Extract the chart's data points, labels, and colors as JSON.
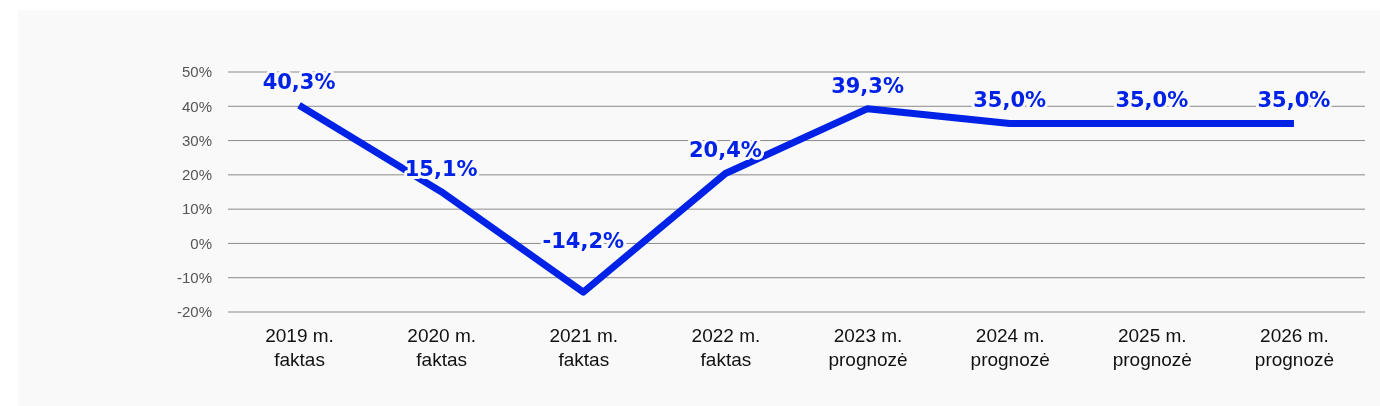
{
  "chart_data": {
    "type": "line",
    "categories": [
      "2019 m.\nfaktas",
      "2020 m.\nfaktas",
      "2021 m.\nfaktas",
      "2022 m.\nfaktas",
      "2023 m.\nprognozė",
      "2024 m.\nprognozė",
      "2025 m.\nprognozė",
      "2026 m.\nprognozė"
    ],
    "series": [
      {
        "color": "#0022e6",
        "values": [
          40.3,
          15.1,
          -14.2,
          20.4,
          39.3,
          35.0,
          35.0,
          35.0
        ],
        "value_labels": [
          "40,3%",
          "15,1%",
          "-14,2%",
          "20,4%",
          "39,3%",
          "35,0%",
          "35,0%",
          "35,0%"
        ]
      }
    ],
    "ylim": [
      -20,
      50
    ],
    "yticks": [
      {
        "value": -20,
        "label": "-20%"
      },
      {
        "value": -10,
        "label": "-10%"
      },
      {
        "value": 0,
        "label": "0%"
      },
      {
        "value": 10,
        "label": "10%"
      },
      {
        "value": 20,
        "label": "20%"
      },
      {
        "value": 30,
        "label": "30%"
      },
      {
        "value": 40,
        "label": "40%"
      },
      {
        "value": 50,
        "label": "50%"
      }
    ],
    "grid": "y",
    "marker": "none",
    "line_style": "solid"
  }
}
